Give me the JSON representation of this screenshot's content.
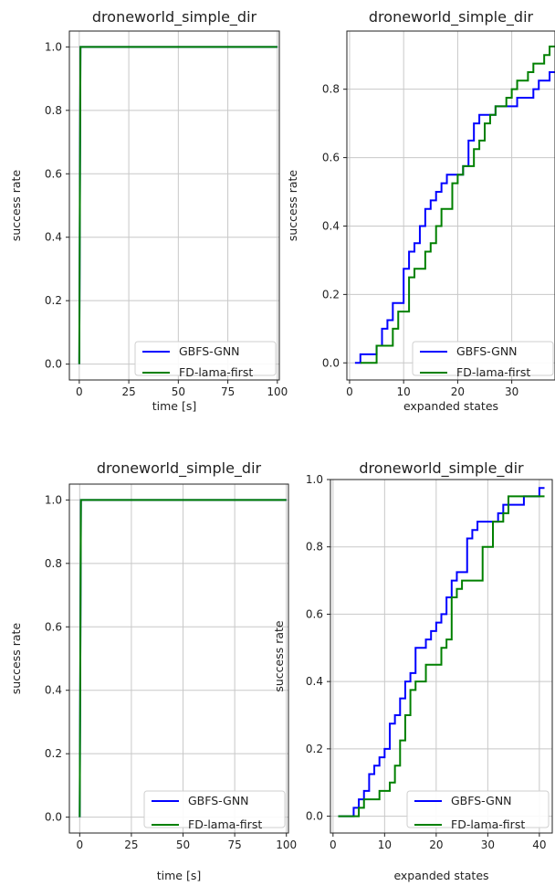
{
  "chart_data": [
    {
      "type": "line",
      "title": "droneworld_simple_dir",
      "xlabel": "time [s]",
      "ylabel": "success rate",
      "xlim": [
        -5,
        101
      ],
      "ylim": [
        -0.05,
        1.05
      ],
      "xticks": [
        0,
        25,
        50,
        75,
        100
      ],
      "xticklabels": [
        "0",
        "25",
        "50",
        "75",
        "100"
      ],
      "yticks": [
        0.0,
        0.2,
        0.4,
        0.6,
        0.8,
        1.0
      ],
      "yticklabels": [
        "0.0",
        "0.2",
        "0.4",
        "0.6",
        "0.8",
        "1.0"
      ],
      "grid": true,
      "legend": "lower-right",
      "series": [
        {
          "name": "GBFS-GNN",
          "color": "#0000ff",
          "x": [
            0,
            0.6,
            1,
            100
          ],
          "y": [
            0,
            1.0,
            1.0,
            1.0
          ]
        },
        {
          "name": "FD-lama-first",
          "color": "#008000",
          "x": [
            0,
            0.6,
            1,
            100
          ],
          "y": [
            0,
            1.0,
            1.0,
            1.0
          ]
        }
      ]
    },
    {
      "type": "line",
      "title": "droneworld_simple_dir",
      "xlabel": "expanded states",
      "ylabel": "success rate",
      "xlim": [
        -0.5,
        38
      ],
      "ylim": [
        -0.05,
        0.97
      ],
      "xticks": [
        0,
        10,
        20,
        30
      ],
      "xticklabels": [
        "0",
        "10",
        "20",
        "30"
      ],
      "yticks": [
        0.0,
        0.2,
        0.4,
        0.6,
        0.8
      ],
      "yticklabels": [
        "0.0",
        "0.2",
        "0.4",
        "0.6",
        "0.8"
      ],
      "grid": true,
      "legend": "lower-right",
      "series": [
        {
          "name": "GBFS-GNN",
          "color": "#0000ff",
          "x": [
            1,
            2,
            4,
            5,
            6,
            7,
            8,
            10,
            11,
            12,
            13,
            14,
            15,
            16,
            17,
            18,
            19,
            20,
            21,
            22,
            23,
            24,
            25,
            26,
            27,
            28,
            29,
            30,
            31,
            32,
            33,
            34,
            35,
            36,
            37,
            38
          ],
          "y": [
            0,
            0.025,
            0.025,
            0.05,
            0.1,
            0.125,
            0.175,
            0.275,
            0.325,
            0.35,
            0.4,
            0.45,
            0.475,
            0.5,
            0.525,
            0.55,
            0.55,
            0.55,
            0.575,
            0.65,
            0.7,
            0.725,
            0.725,
            0.725,
            0.75,
            0.75,
            0.75,
            0.75,
            0.775,
            0.775,
            0.775,
            0.8,
            0.825,
            0.825,
            0.85,
            0.85
          ]
        },
        {
          "name": "FD-lama-first",
          "color": "#008000",
          "x": [
            2,
            4,
            5,
            6,
            7,
            8,
            9,
            10,
            11,
            12,
            13,
            14,
            15,
            16,
            17,
            18,
            19,
            20,
            21,
            22,
            23,
            24,
            25,
            26,
            27,
            28,
            29,
            30,
            31,
            32,
            33,
            34,
            35,
            36,
            37,
            38
          ],
          "y": [
            0,
            0,
            0.05,
            0.05,
            0.05,
            0.1,
            0.15,
            0.15,
            0.25,
            0.275,
            0.275,
            0.325,
            0.35,
            0.4,
            0.45,
            0.45,
            0.525,
            0.55,
            0.575,
            0.575,
            0.625,
            0.65,
            0.7,
            0.725,
            0.75,
            0.75,
            0.775,
            0.8,
            0.825,
            0.825,
            0.85,
            0.875,
            0.875,
            0.9,
            0.925,
            0.925
          ]
        }
      ]
    },
    {
      "type": "line",
      "title": "droneworld_simple_dir",
      "xlabel": "time [s]",
      "ylabel": "success rate",
      "xlim": [
        -5,
        101
      ],
      "ylim": [
        -0.05,
        1.05
      ],
      "xticks": [
        0,
        25,
        50,
        75,
        100
      ],
      "xticklabels": [
        "0",
        "25",
        "50",
        "75",
        "100"
      ],
      "yticks": [
        0.0,
        0.2,
        0.4,
        0.6,
        0.8,
        1.0
      ],
      "yticklabels": [
        "0.0",
        "0.2",
        "0.4",
        "0.6",
        "0.8",
        "1.0"
      ],
      "grid": true,
      "legend": "lower-right",
      "series": [
        {
          "name": "GBFS-GNN",
          "color": "#0000ff",
          "x": [
            0,
            0.6,
            1,
            100
          ],
          "y": [
            0,
            1.0,
            1.0,
            1.0
          ]
        },
        {
          "name": "FD-lama-first",
          "color": "#008000",
          "x": [
            0,
            0.6,
            1,
            100
          ],
          "y": [
            0,
            1.0,
            1.0,
            1.0
          ]
        }
      ]
    },
    {
      "type": "line",
      "title": "droneworld_simple_dir",
      "xlabel": "expanded states",
      "ylabel": "success rate",
      "xlim": [
        -0.5,
        42.5
      ],
      "ylim": [
        -0.05,
        1.0
      ],
      "xticks": [
        0,
        10,
        20,
        30,
        40
      ],
      "xticklabels": [
        "0",
        "10",
        "20",
        "30",
        "40"
      ],
      "yticks": [
        0.0,
        0.2,
        0.4,
        0.6,
        0.8,
        1.0
      ],
      "yticklabels": [
        "0.0",
        "0.2",
        "0.4",
        "0.6",
        "0.8",
        "1.0"
      ],
      "grid": true,
      "legend": "lower-right",
      "series": [
        {
          "name": "GBFS-GNN",
          "color": "#0000ff",
          "x": [
            1,
            3,
            4,
            5,
            6,
            7,
            8,
            9,
            10,
            11,
            12,
            13,
            14,
            15,
            16,
            17,
            18,
            19,
            20,
            21,
            22,
            23,
            24,
            25,
            26,
            27,
            28,
            29,
            30,
            31,
            32,
            33,
            34,
            35,
            36,
            37,
            38,
            39,
            40,
            41
          ],
          "y": [
            0,
            0,
            0.025,
            0.05,
            0.075,
            0.125,
            0.15,
            0.175,
            0.2,
            0.275,
            0.3,
            0.35,
            0.4,
            0.425,
            0.5,
            0.5,
            0.525,
            0.55,
            0.575,
            0.6,
            0.65,
            0.7,
            0.725,
            0.725,
            0.825,
            0.85,
            0.875,
            0.875,
            0.875,
            0.875,
            0.9,
            0.925,
            0.925,
            0.925,
            0.925,
            0.95,
            0.95,
            0.95,
            0.975,
            0.975
          ]
        },
        {
          "name": "FD-lama-first",
          "color": "#008000",
          "x": [
            1,
            3,
            4,
            5,
            6,
            7,
            8,
            9,
            10,
            11,
            12,
            13,
            14,
            15,
            16,
            17,
            18,
            19,
            20,
            21,
            22,
            23,
            24,
            25,
            26,
            27,
            28,
            29,
            30,
            31,
            32,
            33,
            34,
            35,
            36,
            37,
            38,
            39,
            40,
            41
          ],
          "y": [
            0,
            0,
            0,
            0.025,
            0.05,
            0.05,
            0.05,
            0.075,
            0.075,
            0.1,
            0.15,
            0.225,
            0.3,
            0.375,
            0.4,
            0.4,
            0.45,
            0.45,
            0.45,
            0.5,
            0.525,
            0.65,
            0.675,
            0.7,
            0.7,
            0.7,
            0.7,
            0.8,
            0.8,
            0.875,
            0.875,
            0.9,
            0.95,
            0.95,
            0.95,
            0.95,
            0.95,
            0.95,
            0.95,
            0.95
          ]
        }
      ]
    }
  ]
}
